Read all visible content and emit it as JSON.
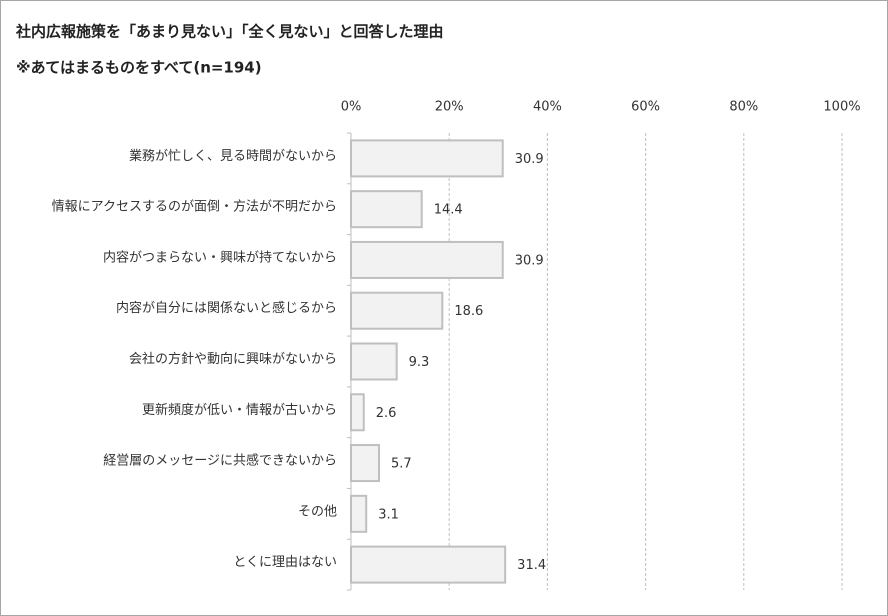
{
  "chart_data": {
    "type": "bar",
    "orientation": "horizontal",
    "title": "社内広報施策を「あまり見ない」「全く見ない」と回答した理由",
    "subtitle": "※あてはまるものをすべて(n=194)",
    "categories": [
      "業務が忙しく、見る時間がないから",
      "情報にアクセスするのが面倒・方法が不明だから",
      "内容がつまらない・興味が持てないから",
      "内容が自分には関係ないと感じるから",
      "会社の方針や動向に興味がないから",
      "更新頻度が低い・情報が古いから",
      "経営層のメッセージに共感できないから",
      "その他",
      "とくに理由はない"
    ],
    "values": [
      30.9,
      14.4,
      30.9,
      18.6,
      9.3,
      2.6,
      5.7,
      3.1,
      31.4
    ],
    "color": "#f2f2f2",
    "edge_color": "#bfbfbf",
    "xlim": [
      0,
      100
    ],
    "xticks": [
      {
        "value": 0,
        "label": "0%"
      },
      {
        "value": 20,
        "label": "20%"
      },
      {
        "value": 40,
        "label": "40%"
      },
      {
        "value": 60,
        "label": "60%"
      },
      {
        "value": 80,
        "label": "80%"
      },
      {
        "value": 100,
        "label": "100%"
      }
    ],
    "grid": true
  }
}
